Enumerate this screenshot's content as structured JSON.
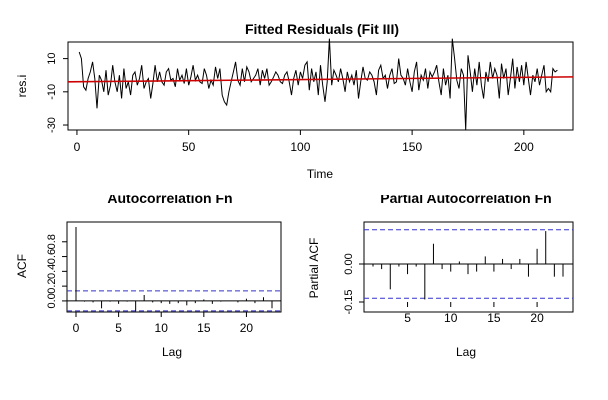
{
  "chart_data": [
    {
      "type": "line",
      "title": "Fitted Residuals (Fit III)",
      "xlabel": "Time",
      "ylabel": "res.i",
      "xlim": [
        -4,
        222
      ],
      "ylim": [
        -33,
        20
      ],
      "xticks": [
        "0",
        "50",
        "100",
        "150",
        "200"
      ],
      "yticks": [
        "10",
        "-10",
        "-30"
      ],
      "x_start": 1,
      "series": [
        {
          "values": [
            14,
            10,
            -7,
            -9,
            -2,
            2,
            8,
            -2,
            -20,
            0,
            -3,
            -10,
            3,
            -12,
            -6,
            6,
            -4,
            -10,
            0,
            -14,
            4,
            -8,
            -4,
            -12,
            0,
            2,
            -6,
            -2,
            6,
            -8,
            -4,
            -2,
            -14,
            -5,
            6,
            -4,
            2,
            -4,
            -6,
            2,
            4,
            -3,
            -2,
            -7,
            4,
            -3,
            0,
            -5,
            4,
            -6,
            -1,
            6,
            -3,
            0,
            -4,
            -5,
            4,
            0,
            -8,
            -3,
            -6,
            5,
            -2,
            4,
            -12,
            -16,
            -18,
            -10,
            -4,
            2,
            8,
            -3,
            -6,
            4,
            -4,
            5,
            2,
            -4,
            -2,
            0,
            4,
            -6,
            3,
            -2,
            4,
            -6,
            -4,
            -1,
            2,
            0,
            -4,
            -5,
            0,
            2,
            -4,
            -12,
            -2,
            3,
            -6,
            2,
            -2,
            6,
            8,
            -9,
            4,
            -4,
            2,
            -12,
            6,
            -6,
            -16,
            -4,
            22,
            -6,
            3,
            0,
            -4,
            4,
            -2,
            -10,
            2,
            -4,
            0,
            -6,
            3,
            -14,
            -4,
            5,
            -2,
            -3,
            2,
            0,
            -4,
            -12,
            3,
            6,
            -2,
            0,
            -8,
            0,
            4,
            -5,
            -4,
            10,
            0,
            -2,
            -6,
            4,
            -4,
            -10,
            2,
            8,
            -9,
            0,
            -3,
            4,
            -8,
            2,
            -1,
            2,
            6,
            -4,
            -12,
            4,
            -6,
            0,
            -14,
            22,
            10,
            -3,
            -8,
            4,
            0,
            -33,
            12,
            2,
            -10,
            4,
            -6,
            8,
            -6,
            -14,
            2,
            -4,
            8,
            -2,
            4,
            0,
            -14,
            7,
            -2,
            4,
            -12,
            -2,
            10,
            -8,
            5,
            -4,
            6,
            -6,
            8,
            -2,
            -12,
            0,
            -4,
            4,
            -6,
            0,
            6,
            -10,
            -8,
            -10,
            4,
            2,
            3
          ]
        }
      ],
      "fit_line": {
        "x": [
          -4,
          222
        ],
        "y": [
          -4,
          -1
        ]
      }
    },
    {
      "type": "bar",
      "title": "Autocorrelation Fn",
      "xlabel": "Lag",
      "ylabel": "ACF",
      "xlim": [
        0,
        23
      ],
      "ylim": [
        -0.15,
        1.0
      ],
      "xticks": [
        "0",
        "5",
        "10",
        "15",
        "20"
      ],
      "yticks": [
        "0.0",
        "0.2",
        "0.4",
        "0.6",
        "0.8"
      ],
      "conf_band": 0.135,
      "lags": [
        0,
        1,
        2,
        3,
        4,
        5,
        6,
        7,
        8,
        9,
        10,
        11,
        12,
        13,
        14,
        15,
        16,
        17,
        18,
        19,
        20,
        21,
        22,
        23
      ],
      "values": [
        1.0,
        -0.01,
        -0.02,
        -0.1,
        -0.01,
        -0.04,
        -0.01,
        -0.14,
        0.08,
        -0.02,
        -0.03,
        -0.04,
        -0.03,
        -0.06,
        -0.03,
        0.02,
        -0.04,
        -0.01,
        0.0,
        -0.02,
        0.03,
        -0.03,
        0.05,
        -0.1
      ]
    },
    {
      "type": "bar",
      "title": "Partial Autocorrelation Fn",
      "xlabel": "Lag",
      "ylabel": "Partial ACF",
      "xlim": [
        1,
        23
      ],
      "ylim": [
        -0.15,
        0.15
      ],
      "xticks": [
        "5",
        "10",
        "15",
        "20"
      ],
      "yticks": [
        "0.00",
        "-0.15"
      ],
      "conf_band": 0.135,
      "lags": [
        1,
        2,
        3,
        4,
        5,
        6,
        7,
        8,
        9,
        10,
        11,
        12,
        13,
        14,
        15,
        16,
        17,
        18,
        19,
        20,
        21,
        22,
        23
      ],
      "values": [
        -0.01,
        -0.02,
        -0.1,
        -0.01,
        -0.04,
        -0.01,
        -0.14,
        0.08,
        -0.02,
        -0.03,
        0.01,
        -0.04,
        -0.03,
        0.03,
        -0.03,
        0.02,
        -0.02,
        0.02,
        -0.05,
        0.06,
        0.13,
        -0.05,
        -0.05
      ]
    }
  ]
}
